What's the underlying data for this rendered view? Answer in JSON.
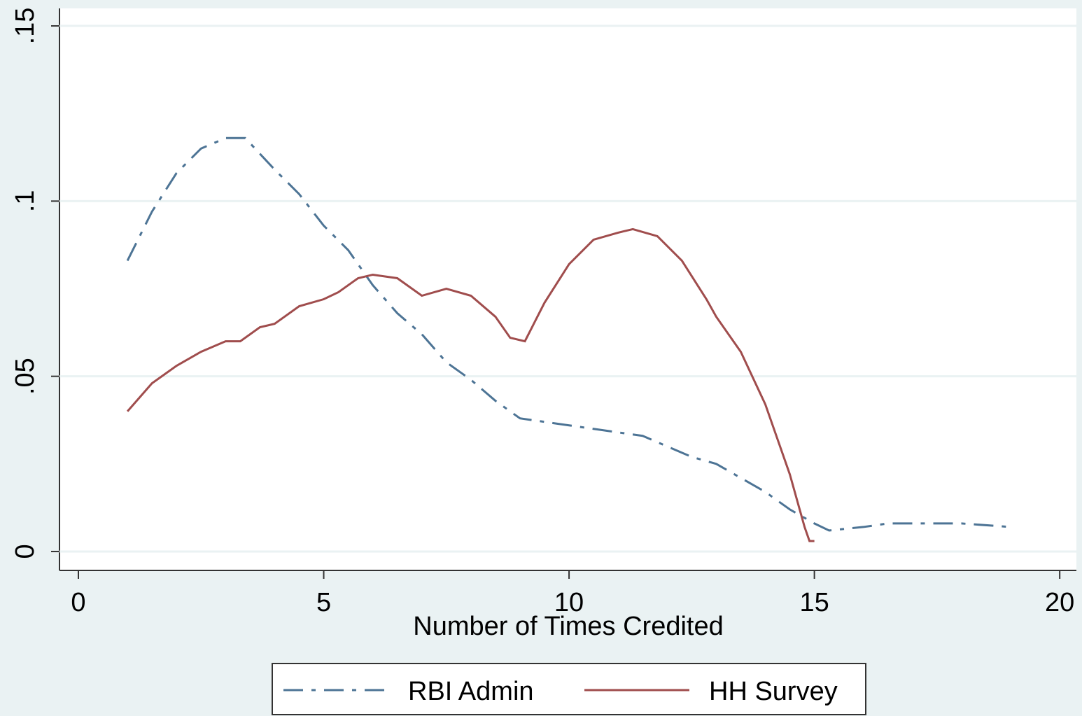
{
  "chart_data": {
    "type": "line",
    "x_label": "Number of Times Credited",
    "xlim": [
      -0.385,
      20.34
    ],
    "ylim": [
      -0.0054,
      0.155
    ],
    "xticks": [
      0,
      5,
      10,
      15,
      20
    ],
    "yticks": [
      {
        "value": 0,
        "label": "0"
      },
      {
        "value": 0.05,
        "label": ".05"
      },
      {
        "value": 0.1,
        "label": ".1"
      },
      {
        "value": 0.15,
        "label": ".15"
      }
    ],
    "grid": true,
    "series": [
      {
        "name": "RBI Admin",
        "color": "#4d7495",
        "dash": "dashdot",
        "x": [
          1.0,
          1.5,
          2.0,
          2.5,
          3.0,
          3.4,
          4.0,
          4.5,
          5.0,
          5.5,
          6.0,
          6.5,
          7.0,
          7.5,
          8.0,
          8.5,
          9.0,
          9.5,
          10.0,
          10.5,
          11.0,
          11.5,
          12.0,
          12.5,
          13.0,
          13.5,
          14.0,
          14.5,
          15.0,
          15.3,
          16.0,
          16.5,
          17.0,
          18.0,
          19.0
        ],
        "values": [
          0.083,
          0.097,
          0.108,
          0.115,
          0.118,
          0.118,
          0.109,
          0.102,
          0.093,
          0.086,
          0.076,
          0.068,
          0.062,
          0.054,
          0.049,
          0.043,
          0.038,
          0.037,
          0.036,
          0.035,
          0.034,
          0.033,
          0.03,
          0.027,
          0.025,
          0.021,
          0.017,
          0.012,
          0.008,
          0.006,
          0.007,
          0.008,
          0.008,
          0.008,
          0.007
        ]
      },
      {
        "name": "HH Survey",
        "color": "#a04d4d",
        "dash": "solid",
        "x": [
          1.0,
          1.5,
          2.0,
          2.5,
          3.0,
          3.3,
          3.7,
          4.0,
          4.5,
          5.0,
          5.3,
          5.7,
          6.0,
          6.5,
          7.0,
          7.5,
          8.0,
          8.5,
          8.8,
          9.1,
          9.5,
          10.0,
          10.5,
          11.0,
          11.3,
          11.8,
          12.3,
          12.8,
          13.0,
          13.5,
          14.0,
          14.5,
          14.8,
          14.9,
          15.0
        ],
        "values": [
          0.04,
          0.048,
          0.053,
          0.057,
          0.06,
          0.06,
          0.064,
          0.065,
          0.07,
          0.072,
          0.074,
          0.078,
          0.079,
          0.078,
          0.073,
          0.075,
          0.073,
          0.067,
          0.061,
          0.06,
          0.071,
          0.082,
          0.089,
          0.091,
          0.092,
          0.09,
          0.083,
          0.072,
          0.067,
          0.057,
          0.042,
          0.022,
          0.007,
          0.003,
          0.003
        ]
      }
    ]
  }
}
